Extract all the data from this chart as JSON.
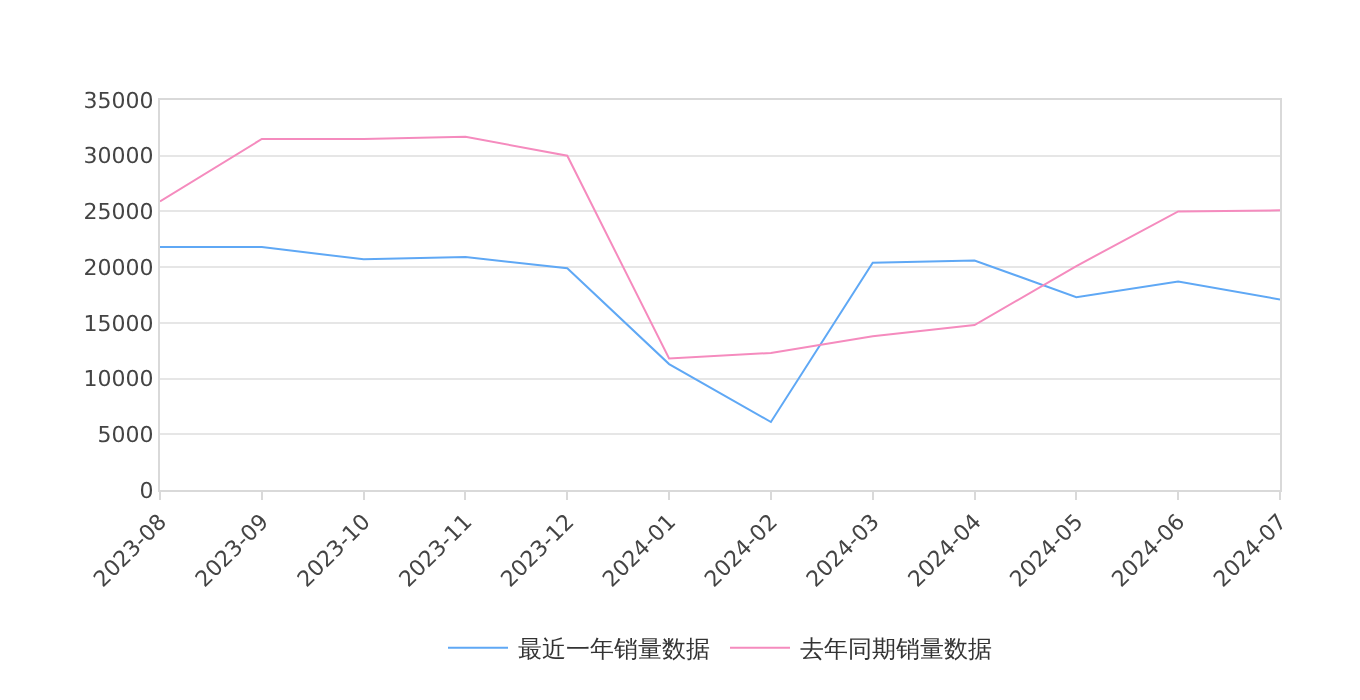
{
  "chart_data": {
    "type": "line",
    "categories": [
      "2023-08",
      "2023-09",
      "2023-10",
      "2023-11",
      "2023-12",
      "2024-01",
      "2024-02",
      "2024-03",
      "2024-04",
      "2024-05",
      "2024-06",
      "2024-07"
    ],
    "series": [
      {
        "name": "最近一年销量数据",
        "color": "#5fa8f5",
        "values": [
          21800,
          21800,
          20700,
          20900,
          19900,
          11300,
          6100,
          20400,
          20600,
          17300,
          18700,
          17100
        ]
      },
      {
        "name": "去年同期销量数据",
        "color": "#f58bbe",
        "values": [
          25900,
          31500,
          31500,
          31700,
          30000,
          11800,
          12300,
          13800,
          14800,
          20100,
          25000,
          25100
        ]
      }
    ],
    "ylim": [
      0,
      35000
    ],
    "yticks": [
      0,
      5000,
      10000,
      15000,
      20000,
      25000,
      30000,
      35000
    ],
    "grid": "y",
    "legend": "bottom",
    "marker": "none",
    "line_style": "solid"
  }
}
